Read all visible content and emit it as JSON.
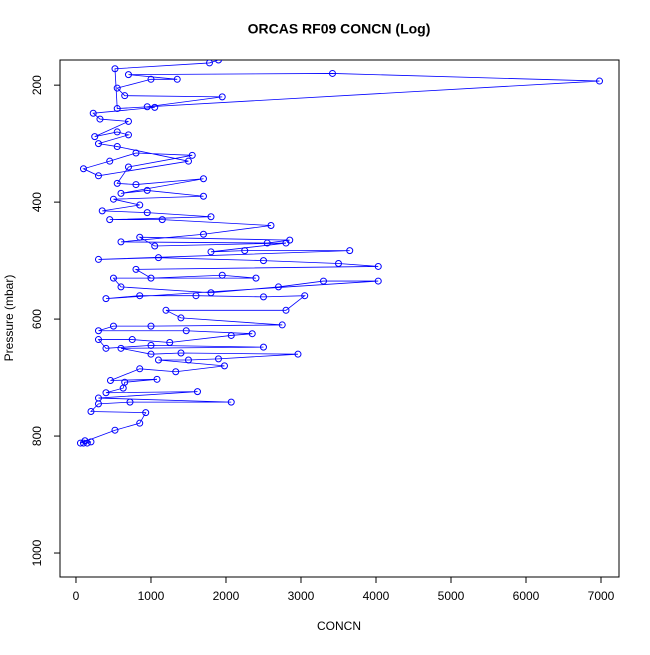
{
  "chart_data": {
    "type": "line",
    "title": "ORCAS RF09 CONCN (Log)",
    "xlabel": "CONCN",
    "ylabel": "Pressure (mbar)",
    "xlim": [
      -213,
      7240
    ],
    "ylim": [
      1041,
      157
    ],
    "y_reversed": true,
    "xticks": [
      0,
      1000,
      2000,
      3000,
      4000,
      5000,
      6000,
      7000
    ],
    "yticks": [
      200,
      400,
      600,
      800,
      1000
    ],
    "series": [
      {
        "color": "#0000ff",
        "marker": "circle",
        "x": [
          100,
          150,
          200,
          120,
          60,
          520,
          850,
          930,
          200,
          300,
          720,
          2070,
          300,
          1620,
          400,
          630,
          650,
          1080,
          460,
          850,
          1330,
          1980,
          1100,
          1500,
          1900,
          2960,
          1400,
          1000,
          600,
          2500,
          1000,
          400,
          300,
          750,
          1250,
          2070,
          2350,
          1470,
          300,
          500,
          1000,
          2750,
          1400,
          1200,
          2800,
          3050,
          2500,
          1600,
          850,
          400,
          4030,
          3300,
          2700,
          1800,
          600,
          500,
          2400,
          1950,
          1000,
          800,
          4030,
          3500,
          2500,
          1100,
          300,
          3650,
          2250,
          1800,
          2800,
          1050,
          850,
          2850,
          2550,
          600,
          1700,
          2600,
          1150,
          450,
          1800,
          950,
          350,
          850,
          500,
          1700,
          950,
          600,
          1700,
          800,
          550,
          700,
          1550,
          800,
          450,
          100,
          300,
          1500,
          550,
          300,
          700,
          550,
          250,
          700,
          320,
          230,
          1050,
          950,
          1950,
          650,
          550,
          1000,
          1350,
          700,
          3420,
          6980,
          550,
          520,
          1780,
          1900
        ],
        "values": [
          812,
          812,
          810,
          808,
          812,
          790,
          778,
          760,
          758,
          745,
          742,
          742,
          735,
          724,
          726,
          718,
          708,
          703,
          705,
          685,
          690,
          680,
          670,
          670,
          668,
          660,
          658,
          660,
          650,
          648,
          645,
          650,
          635,
          635,
          640,
          628,
          625,
          620,
          620,
          612,
          612,
          610,
          598,
          585,
          585,
          560,
          562,
          560,
          560,
          565,
          535,
          535,
          545,
          555,
          545,
          530,
          530,
          525,
          530,
          515,
          510,
          505,
          500,
          495,
          498,
          483,
          483,
          485,
          470,
          475,
          460,
          465,
          470,
          468,
          455,
          440,
          430,
          430,
          425,
          418,
          415,
          405,
          395,
          390,
          380,
          385,
          360,
          370,
          368,
          340,
          320,
          316,
          330,
          343,
          355,
          330,
          305,
          300,
          285,
          280,
          288,
          262,
          258,
          248,
          238,
          237,
          220,
          218,
          205,
          190,
          190,
          182,
          180,
          193,
          240,
          172,
          162,
          157
        ]
      }
    ]
  }
}
